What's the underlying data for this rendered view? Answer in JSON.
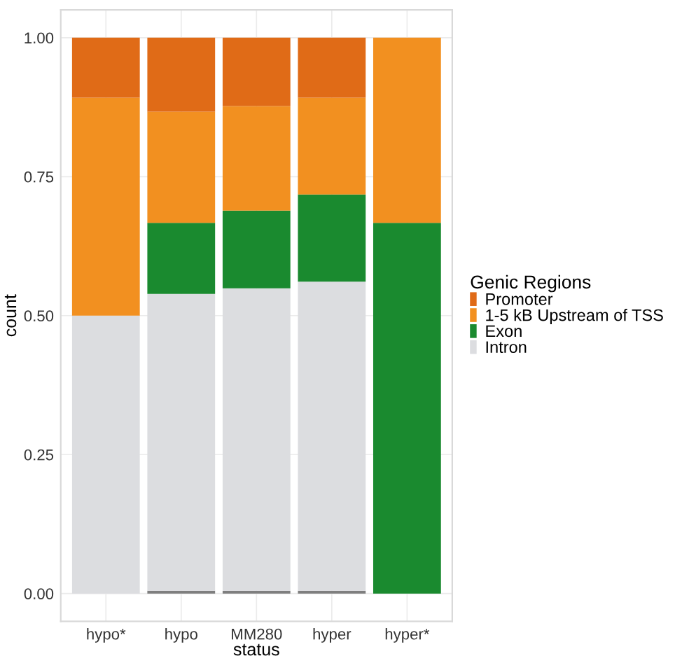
{
  "chart_data": {
    "type": "bar",
    "stacked": true,
    "xlabel": "status",
    "ylabel": "count",
    "legend_title": "Genic Regions",
    "legend": "right",
    "categories": [
      "hypo*",
      "hypo",
      "MM280",
      "hyper",
      "hyper*"
    ],
    "series": [
      {
        "color": "#7f7f7f",
        "values": [
          0,
          0.005,
          0.005,
          0.005,
          0
        ]
      },
      {
        "name": "Intron",
        "color": "#dcdde0",
        "values": [
          0.5,
          0.534,
          0.544,
          0.556,
          0
        ]
      },
      {
        "name": "Exon",
        "color": "#1a8a2f",
        "values": [
          0,
          0.128,
          0.14,
          0.157,
          0.667
        ]
      },
      {
        "name": "1-5 kB Upstream of TSS",
        "color": "#f29020",
        "values": [
          0.392,
          0.2,
          0.188,
          0.174,
          0.333
        ]
      },
      {
        "name": "Promoter",
        "color": "#e06b17",
        "values": [
          0.108,
          0.133,
          0.123,
          0.108,
          0
        ]
      }
    ],
    "ylim": [
      -0.05,
      1.05
    ],
    "yticks": [
      {
        "value": 0,
        "label": "0.00"
      },
      {
        "value": 0.25,
        "label": "0.25"
      },
      {
        "value": 0.5,
        "label": "0.50"
      },
      {
        "value": 0.75,
        "label": "0.75"
      },
      {
        "value": 1,
        "label": "1.00"
      }
    ],
    "grid": true
  }
}
